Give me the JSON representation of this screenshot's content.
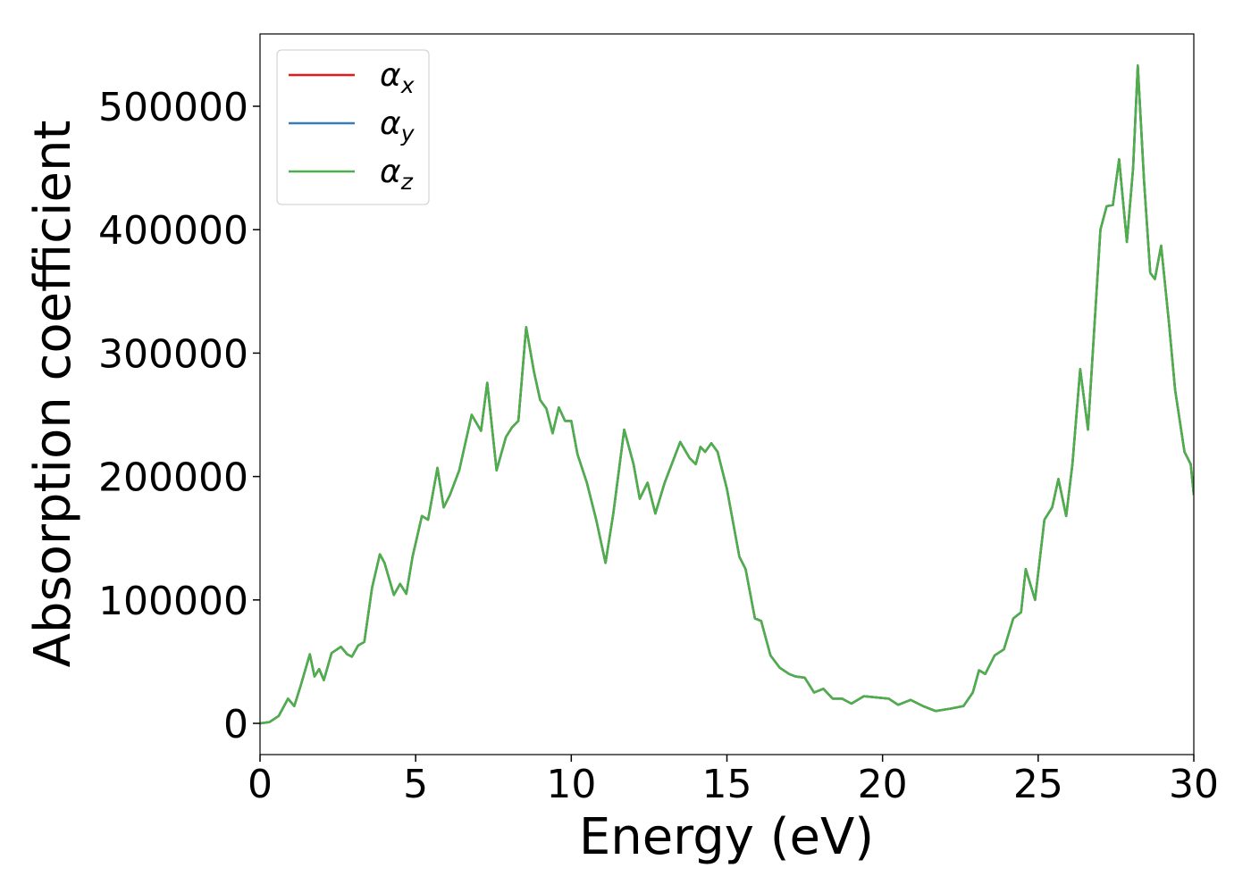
{
  "chart_data": {
    "type": "line",
    "xlabel": "Energy (eV)",
    "ylabel": "Absorption coefficient",
    "xlim": [
      0,
      30
    ],
    "ylim": [
      -25300,
      558600
    ],
    "xticks": [
      0,
      5,
      10,
      15,
      20,
      25,
      30
    ],
    "yticks": [
      0,
      100000,
      200000,
      300000,
      400000,
      500000
    ],
    "legend": "upper left",
    "x": [
      0,
      0.3,
      0.6,
      0.9,
      1.1,
      1.3,
      1.6,
      1.75,
      1.9,
      2.05,
      2.3,
      2.6,
      2.8,
      2.95,
      3.15,
      3.35,
      3.6,
      3.85,
      4.0,
      4.3,
      4.5,
      4.7,
      4.9,
      5.2,
      5.4,
      5.7,
      5.9,
      6.1,
      6.4,
      6.8,
      7.1,
      7.3,
      7.6,
      7.9,
      8.1,
      8.3,
      8.55,
      8.8,
      9.0,
      9.2,
      9.4,
      9.6,
      9.8,
      10.0,
      10.2,
      10.5,
      10.8,
      11.1,
      11.35,
      11.7,
      12.0,
      12.2,
      12.45,
      12.7,
      13.0,
      13.5,
      13.8,
      14.0,
      14.15,
      14.3,
      14.5,
      14.7,
      15.0,
      15.4,
      15.6,
      15.9,
      16.1,
      16.4,
      16.7,
      17.0,
      17.2,
      17.5,
      17.8,
      18.1,
      18.4,
      18.7,
      19.0,
      19.4,
      19.8,
      20.2,
      20.5,
      20.9,
      21.3,
      21.7,
      22.2,
      22.6,
      22.9,
      23.1,
      23.3,
      23.6,
      23.9,
      24.2,
      24.45,
      24.6,
      24.9,
      25.2,
      25.45,
      25.65,
      25.9,
      26.1,
      26.35,
      26.6,
      27.0,
      27.2,
      27.4,
      27.6,
      27.85,
      28.05,
      28.2,
      28.4,
      28.6,
      28.75,
      28.95,
      29.2,
      29.4,
      29.7,
      29.9,
      30
    ],
    "series": [
      {
        "name": "αx",
        "color": "#e41a1c",
        "values": [
          0,
          1000,
          6000,
          20000,
          14000,
          30000,
          56000,
          38000,
          44000,
          35000,
          57000,
          62000,
          56000,
          54000,
          63000,
          66000,
          110000,
          137000,
          130000,
          104000,
          113000,
          105000,
          135000,
          168000,
          165000,
          207000,
          175000,
          185000,
          205000,
          250000,
          237000,
          276000,
          205000,
          232000,
          240000,
          245000,
          321000,
          285000,
          262000,
          255000,
          235000,
          256000,
          245000,
          245000,
          218000,
          195000,
          165000,
          130000,
          170000,
          238000,
          210000,
          182000,
          195000,
          170000,
          195000,
          228000,
          215000,
          210000,
          224000,
          220000,
          227000,
          220000,
          190000,
          135000,
          125000,
          85000,
          83000,
          55000,
          45000,
          40000,
          38000,
          37000,
          25000,
          28000,
          20000,
          20000,
          16000,
          22000,
          21000,
          20000,
          15000,
          19000,
          14000,
          10000,
          12000,
          14000,
          25000,
          43000,
          40000,
          55000,
          60000,
          85000,
          90000,
          125000,
          100000,
          165000,
          175000,
          198000,
          168000,
          210000,
          287000,
          238000,
          400000,
          419000,
          420000,
          457000,
          390000,
          450000,
          533000,
          440000,
          365000,
          360000,
          387000,
          325000,
          270000,
          220000,
          210000,
          185000
        ]
      },
      {
        "name": "αy",
        "color": "#377eb8",
        "values": [
          0,
          1000,
          6000,
          20000,
          14000,
          30000,
          56000,
          38000,
          44000,
          35000,
          57000,
          62000,
          56000,
          54000,
          63000,
          66000,
          110000,
          137000,
          130000,
          104000,
          113000,
          105000,
          135000,
          168000,
          165000,
          207000,
          175000,
          185000,
          205000,
          250000,
          237000,
          276000,
          205000,
          232000,
          240000,
          245000,
          321000,
          285000,
          262000,
          255000,
          235000,
          256000,
          245000,
          245000,
          218000,
          195000,
          165000,
          130000,
          170000,
          238000,
          210000,
          182000,
          195000,
          170000,
          195000,
          228000,
          215000,
          210000,
          224000,
          220000,
          227000,
          220000,
          190000,
          135000,
          125000,
          85000,
          83000,
          55000,
          45000,
          40000,
          38000,
          37000,
          25000,
          28000,
          20000,
          20000,
          16000,
          22000,
          21000,
          20000,
          15000,
          19000,
          14000,
          10000,
          12000,
          14000,
          25000,
          43000,
          40000,
          55000,
          60000,
          85000,
          90000,
          125000,
          100000,
          165000,
          175000,
          198000,
          168000,
          210000,
          287000,
          238000,
          400000,
          419000,
          420000,
          457000,
          390000,
          450000,
          533000,
          440000,
          365000,
          360000,
          387000,
          325000,
          270000,
          220000,
          210000,
          185000
        ]
      },
      {
        "name": "αz",
        "color": "#4daf4a",
        "values": [
          0,
          1000,
          6000,
          20000,
          14000,
          30000,
          56000,
          38000,
          44000,
          35000,
          57000,
          62000,
          56000,
          54000,
          63000,
          66000,
          110000,
          137000,
          130000,
          104000,
          113000,
          105000,
          135000,
          168000,
          165000,
          207000,
          175000,
          185000,
          205000,
          250000,
          237000,
          276000,
          205000,
          232000,
          240000,
          245000,
          321000,
          285000,
          262000,
          255000,
          235000,
          256000,
          245000,
          245000,
          218000,
          195000,
          165000,
          130000,
          170000,
          238000,
          210000,
          182000,
          195000,
          170000,
          195000,
          228000,
          215000,
          210000,
          224000,
          220000,
          227000,
          220000,
          190000,
          135000,
          125000,
          85000,
          83000,
          55000,
          45000,
          40000,
          38000,
          37000,
          25000,
          28000,
          20000,
          20000,
          16000,
          22000,
          21000,
          20000,
          15000,
          19000,
          14000,
          10000,
          12000,
          14000,
          25000,
          43000,
          40000,
          55000,
          60000,
          85000,
          90000,
          125000,
          100000,
          165000,
          175000,
          198000,
          168000,
          210000,
          287000,
          238000,
          400000,
          419000,
          420000,
          457000,
          390000,
          450000,
          533000,
          440000,
          365000,
          360000,
          387000,
          325000,
          270000,
          220000,
          210000,
          185000
        ]
      }
    ]
  }
}
